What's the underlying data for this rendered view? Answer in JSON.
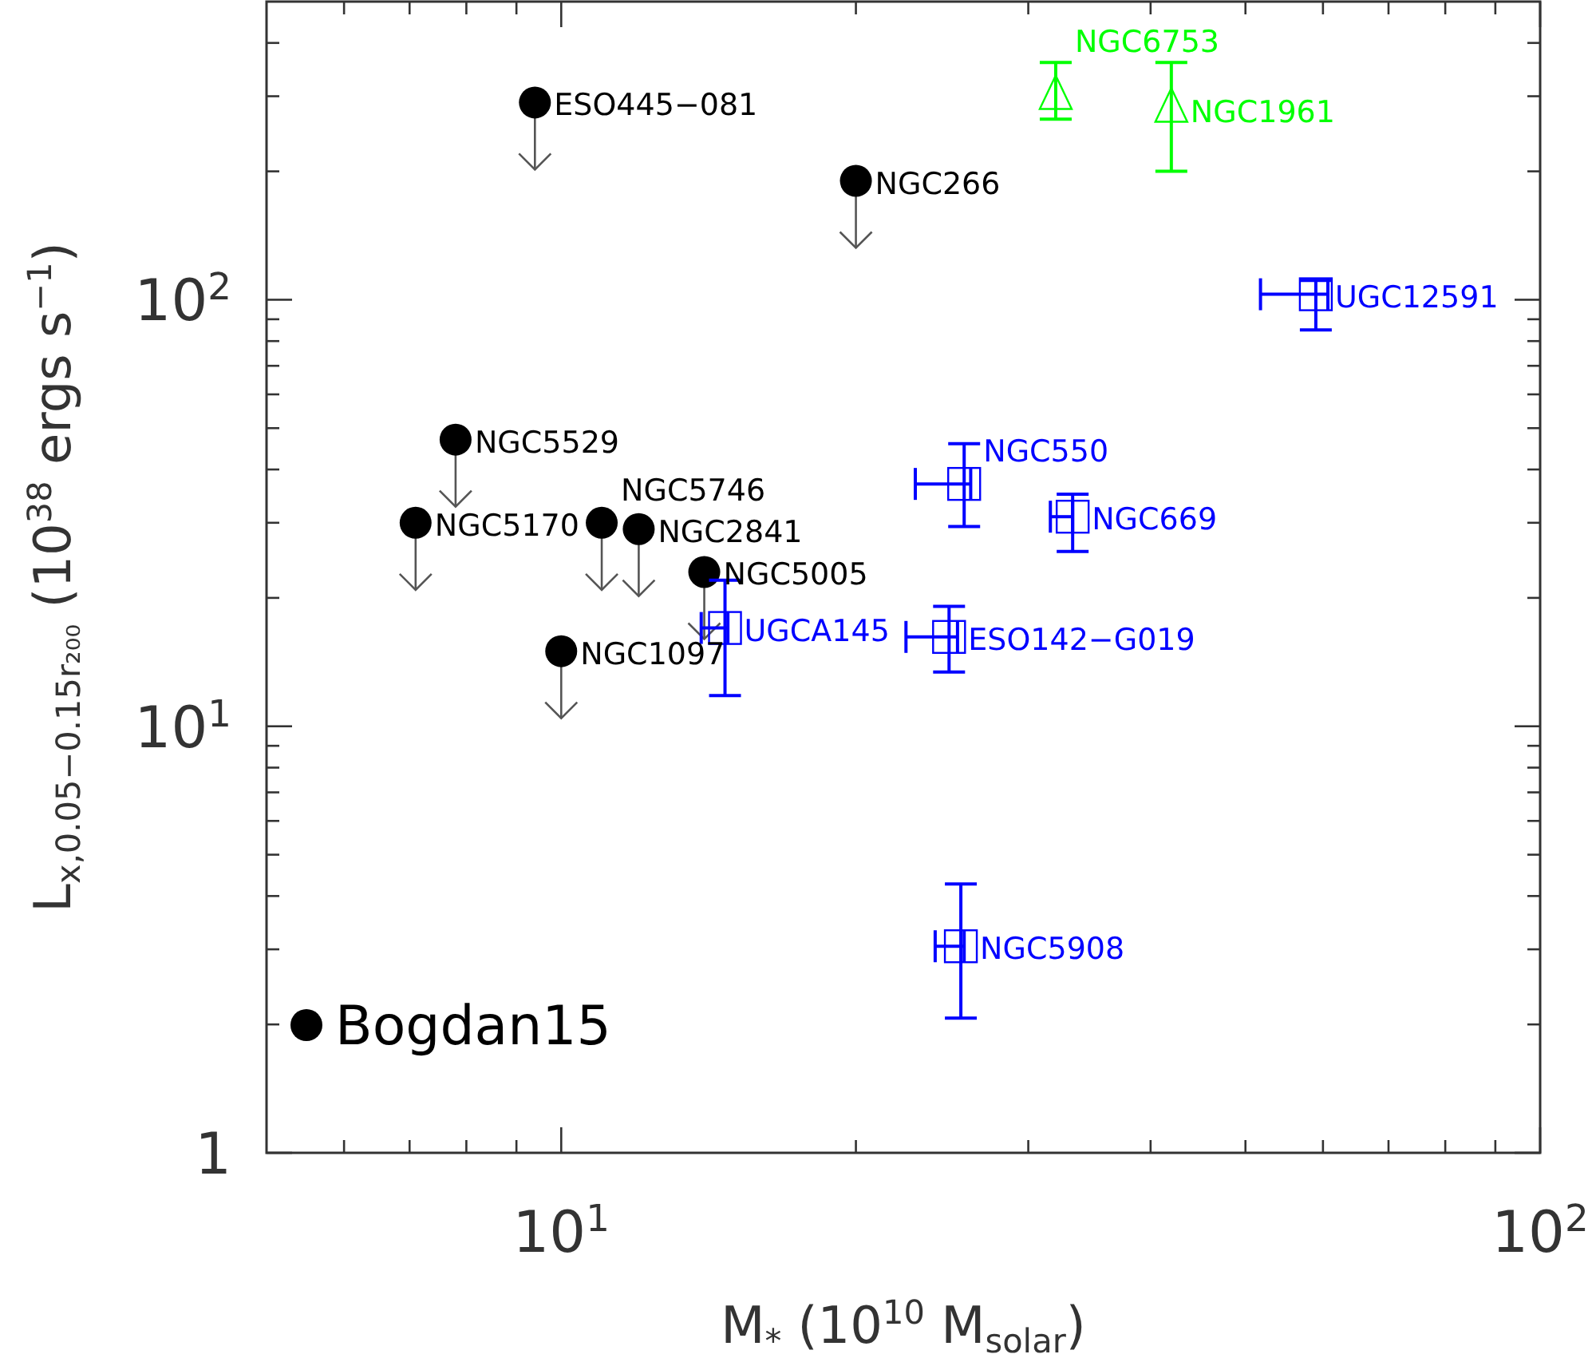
{
  "chart_data": {
    "type": "scatter",
    "xlabel": "M$_{*}$ (10$^{10}$ M$_{solar}$)",
    "ylabel": "L$_{x,0.05−0.15r₂₀₀}$ (10$^{38}$ ergs s$^{−1}$)",
    "log": "xy",
    "xlim": [
      5,
      100
    ],
    "ylim": [
      1,
      500
    ],
    "xticks": [
      {
        "value": 6,
        "label": null
      },
      {
        "value": 7,
        "label": null
      },
      {
        "value": 8,
        "label": null
      },
      {
        "value": 9,
        "label": null
      },
      {
        "value": 10,
        "label": "10$^{1}$"
      },
      {
        "value": 20,
        "label": null
      },
      {
        "value": 30,
        "label": null
      },
      {
        "value": 40,
        "label": null
      },
      {
        "value": 50,
        "label": null
      },
      {
        "value": 60,
        "label": null
      },
      {
        "value": 70,
        "label": null
      },
      {
        "value": 80,
        "label": null
      },
      {
        "value": 90,
        "label": null
      },
      {
        "value": 100,
        "label": "10$^{2}$"
      }
    ],
    "yticks": [
      1,
      {
        "value": 2,
        "label": null
      },
      {
        "value": 3,
        "label": null
      },
      {
        "value": 4,
        "label": null
      },
      {
        "value": 5,
        "label": null
      },
      {
        "value": 6,
        "label": null
      },
      {
        "value": 7,
        "label": null
      },
      {
        "value": 8,
        "label": null
      },
      {
        "value": 9,
        "label": null
      },
      {
        "value": 10,
        "label": "10$^{1}$"
      },
      {
        "value": 20,
        "label": null
      },
      {
        "value": 30,
        "label": null
      },
      {
        "value": 40,
        "label": null
      },
      {
        "value": 50,
        "label": null
      },
      {
        "value": 60,
        "label": null
      },
      {
        "value": 70,
        "label": null
      },
      {
        "value": 80,
        "label": null
      },
      {
        "value": 90,
        "label": null
      },
      {
        "value": 100,
        "label": "10$^{2}$"
      },
      {
        "value": 200,
        "label": null
      },
      {
        "value": 300,
        "label": null
      },
      {
        "value": 400,
        "label": null
      }
    ],
    "grid": false,
    "legend": "bottom left",
    "series": [
      {
        "name": "Bogdan15",
        "color": "#000000",
        "marker": "circle",
        "x": [
          9.4,
          20,
          7.8,
          7.1,
          11,
          12,
          14,
          10
        ],
        "values": [
          290,
          190,
          47,
          30,
          30,
          29,
          23,
          15
        ]
      },
      {
        "color": "#00ff00",
        "marker": "triangle",
        "x": [
          32,
          42
        ],
        "values": [
          300,
          280
        ],
        "errors": [
          [
            265,
            360
          ],
          [
            200,
            360
          ]
        ]
      },
      {
        "color": "#0000ff",
        "marker": "square",
        "x": [
          59,
          25.8,
          33.3,
          14.7,
          24.9,
          25.6
        ],
        "values": [
          103,
          37,
          31,
          17,
          16.2,
          3.05
        ],
        "errors": [
          [
            85,
            111
          ],
          [
            29.4,
            46
          ],
          [
            25.7,
            35
          ],
          [
            11.8,
            22
          ],
          [
            13.4,
            19.1
          ],
          [
            2.07,
            4.27
          ]
        ],
        "xerrors": [
          [
            51.8,
            60.7
          ],
          [
            23,
            26.2
          ],
          [
            31.6,
            33.3
          ],
          [
            13.9,
            14.8
          ],
          [
            22.5,
            25.4
          ],
          [
            24.1,
            25.8
          ]
        ]
      }
    ],
    "annotations": [
      {
        "text": "ESO445−081",
        "x": 9.4,
        "y": 290
      },
      {
        "text": "NGC266",
        "x": 20,
        "y": 190
      },
      {
        "text": "NGC5529",
        "x": 7.8,
        "y": 47
      },
      {
        "text": "NGC5170",
        "x": 7.1,
        "y": 30
      },
      {
        "text": "NGC2841",
        "x": 12,
        "y": 29
      },
      {
        "text": "NGC5746",
        "x": 11,
        "y": 30
      },
      {
        "text": "NGC5005",
        "x": 14,
        "y": 23
      },
      {
        "text": "NGC1097",
        "x": 10,
        "y": 15
      },
      {
        "text": "NGC6753",
        "x": 32,
        "y": 300
      },
      {
        "text": "NGC1961",
        "x": 42,
        "y": 280
      },
      {
        "text": "UGC12591",
        "x": 59,
        "y": 103
      },
      {
        "text": "NGC550",
        "x": 25.8,
        "y": 37
      },
      {
        "text": "NGC669",
        "x": 33.3,
        "y": 31
      },
      {
        "text": "UGCA145",
        "x": 14.7,
        "y": 17
      },
      {
        "text": "ESO142−G019",
        "x": 24.9,
        "y": 16.2
      },
      {
        "text": "NGC5908",
        "x": 25.6,
        "y": 3.05
      }
    ]
  }
}
